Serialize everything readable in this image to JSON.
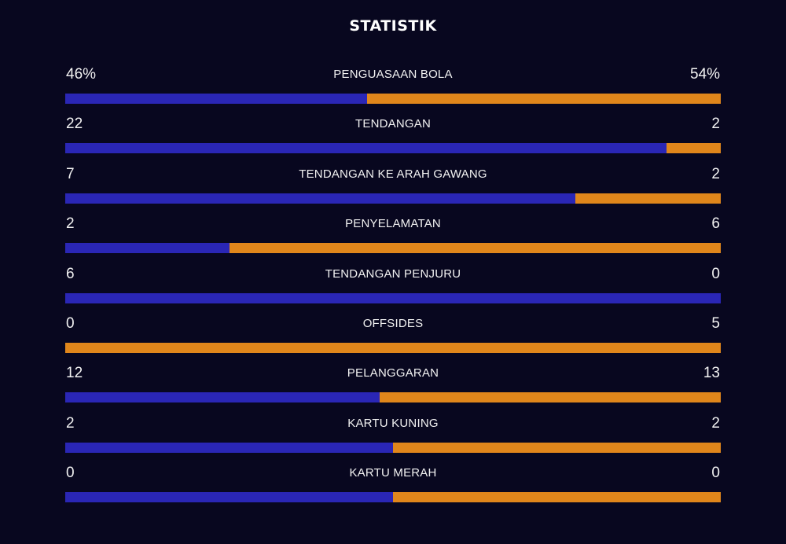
{
  "title": "STATISTIK",
  "colors": {
    "background": "#08071f",
    "home": "#2a26b5",
    "away": "#e0861b",
    "text": "#f2f2f2"
  },
  "stats": [
    {
      "label": "PENGUASAAN BOLA",
      "home": "46%",
      "away": "54%",
      "home_share": 0.46
    },
    {
      "label": "TENDANGAN",
      "home": "22",
      "away": "2",
      "home_share": 0.917
    },
    {
      "label": "TENDANGAN KE ARAH GAWANG",
      "home": "7",
      "away": "2",
      "home_share": 0.778
    },
    {
      "label": "PENYELAMATAN",
      "home": "2",
      "away": "6",
      "home_share": 0.25
    },
    {
      "label": "TENDANGAN PENJURU",
      "home": "6",
      "away": "0",
      "home_share": 1.0
    },
    {
      "label": "OFFSIDES",
      "home": "0",
      "away": "5",
      "home_share": 0.0
    },
    {
      "label": "PELANGGARAN",
      "home": "12",
      "away": "13",
      "home_share": 0.48
    },
    {
      "label": "KARTU KUNING",
      "home": "2",
      "away": "2",
      "home_share": 0.5
    },
    {
      "label": "KARTU MERAH",
      "home": "0",
      "away": "0",
      "home_share": 0.5
    }
  ]
}
